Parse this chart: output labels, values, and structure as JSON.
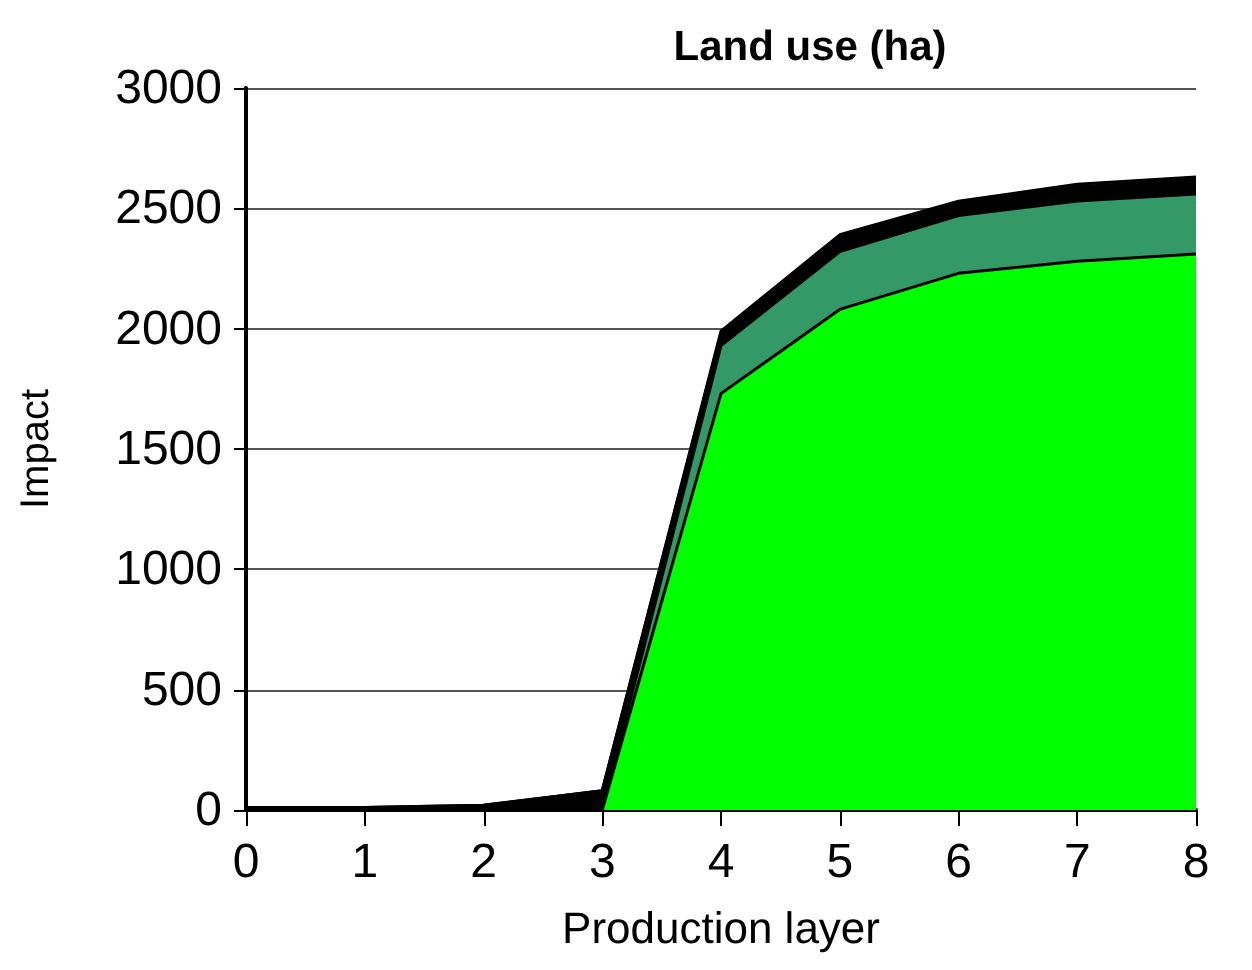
{
  "chart_data": {
    "type": "area",
    "title": "Land use (ha)",
    "xlabel": "Production layer",
    "ylabel": "Impact",
    "stacked": true,
    "grid": "y",
    "x": [
      0,
      1,
      2,
      3,
      4,
      5,
      6,
      7,
      8
    ],
    "xlim": [
      0,
      8
    ],
    "xticks": [
      0,
      1,
      2,
      3,
      4,
      5,
      6,
      7,
      8
    ],
    "ylim": [
      0,
      3000
    ],
    "yticks": [
      0,
      500,
      1000,
      1500,
      2000,
      2500,
      3000
    ],
    "series": [
      {
        "color": "#00ff00",
        "values": [
          0,
          0,
          0,
          0,
          1730,
          2080,
          2230,
          2280,
          2310
        ]
      },
      {
        "color": "#339966",
        "values": [
          0,
          0,
          0,
          0,
          200,
          240,
          240,
          250,
          250
        ]
      },
      {
        "color": "#000000",
        "values": [
          10,
          10,
          20,
          80,
          50,
          60,
          50,
          60,
          60
        ]
      },
      {
        "color": "#cc99ff",
        "values": [
          0,
          0,
          0,
          0,
          10,
          10,
          10,
          10,
          10
        ]
      }
    ]
  }
}
